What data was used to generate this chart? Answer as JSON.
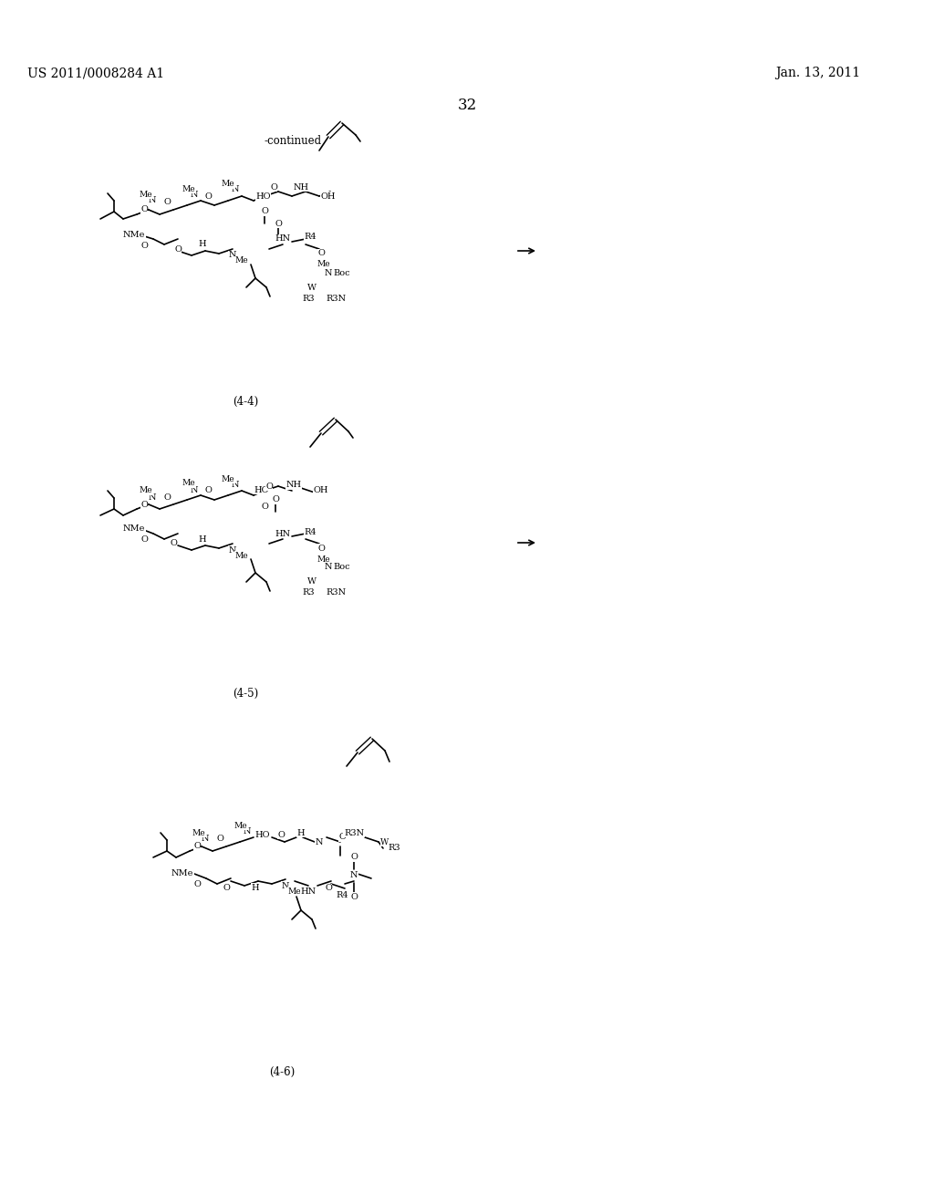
{
  "bg_color": "#ffffff",
  "patent_number": "US 2011/0008284 A1",
  "patent_date": "Jan. 13, 2011",
  "page_number": "32",
  "continued_label": "-continued",
  "label_44": "(4-4)",
  "label_45": "(4-5)",
  "label_46": "(4-6)"
}
